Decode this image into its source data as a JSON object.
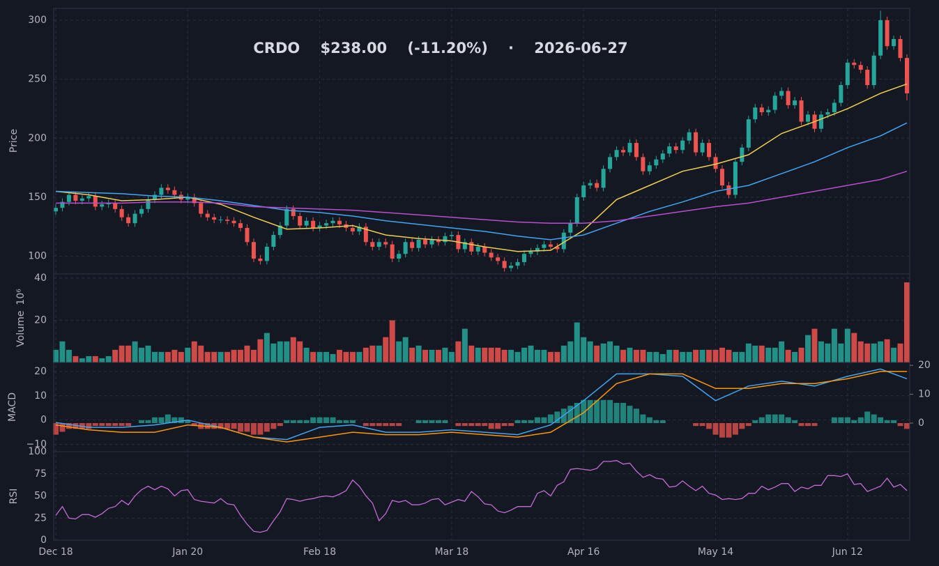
{
  "chart_data": {
    "type": "candlestick",
    "title": "CRDO    $238.00    (-11.20%)    ·    2026-06-27",
    "categories": [
      "Dec 18",
      null,
      null,
      null,
      null,
      null,
      null,
      null,
      null,
      null,
      null,
      null,
      null,
      null,
      null,
      null,
      null,
      null,
      null,
      null,
      "Jan 20",
      null,
      null,
      null,
      null,
      null,
      null,
      null,
      null,
      null,
      null,
      null,
      null,
      null,
      null,
      null,
      null,
      null,
      null,
      null,
      "Feb 18",
      null,
      null,
      null,
      null,
      null,
      null,
      null,
      null,
      null,
      null,
      null,
      null,
      null,
      null,
      null,
      null,
      null,
      null,
      null,
      "Mar 18",
      null,
      null,
      null,
      null,
      null,
      null,
      null,
      null,
      null,
      null,
      null,
      null,
      null,
      null,
      null,
      null,
      null,
      null,
      null,
      "Apr 16",
      null,
      null,
      null,
      null,
      null,
      null,
      null,
      null,
      null,
      null,
      null,
      null,
      null,
      null,
      null,
      null,
      null,
      null,
      null,
      "May 14",
      null,
      null,
      null,
      null,
      null,
      null,
      null,
      null,
      null,
      null,
      null,
      null,
      null,
      null,
      null,
      null,
      null,
      null,
      null,
      "Jun 12",
      null,
      null,
      null,
      null,
      null,
      null,
      null,
      null,
      null
    ],
    "open": [
      138,
      141,
      146,
      152,
      147,
      149,
      151,
      142,
      144,
      145,
      140,
      133,
      128,
      136,
      140,
      148,
      152,
      158,
      156,
      152,
      148,
      150,
      145,
      136,
      133,
      131,
      131,
      130,
      128,
      124,
      112,
      98,
      96,
      108,
      118,
      126,
      140,
      134,
      126,
      130,
      124,
      126,
      128,
      130,
      127,
      124,
      121,
      125,
      112,
      108,
      112,
      110,
      98,
      102,
      112,
      107,
      114,
      110,
      114,
      112,
      117,
      118,
      106,
      112,
      104,
      108,
      103,
      99,
      96,
      90,
      92,
      95,
      102,
      104,
      107,
      110,
      108,
      106,
      120,
      128,
      150,
      160,
      162,
      158,
      174,
      184,
      190,
      188,
      196,
      184,
      172,
      177,
      182,
      187,
      193,
      190,
      198,
      205,
      188,
      196,
      184,
      174,
      160,
      152,
      180,
      192,
      216,
      226,
      222,
      224,
      236,
      240,
      228,
      232,
      214,
      220,
      208,
      220,
      222,
      230,
      245,
      264,
      262,
      258,
      245,
      270,
      300,
      278,
      284,
      268
    ],
    "high": [
      144,
      149,
      155,
      155,
      152,
      154,
      154,
      147,
      148,
      148,
      143,
      136,
      139,
      143,
      151,
      155,
      161,
      161,
      159,
      155,
      153,
      153,
      148,
      139,
      136,
      134,
      134,
      133,
      131,
      127,
      115,
      101,
      111,
      121,
      129,
      143,
      143,
      137,
      133,
      133,
      129,
      131,
      133,
      133,
      130,
      127,
      128,
      128,
      115,
      115,
      115,
      113,
      105,
      115,
      115,
      117,
      117,
      117,
      117,
      120,
      121,
      121,
      115,
      115,
      111,
      111,
      106,
      102,
      99,
      95,
      98,
      105,
      107,
      110,
      113,
      113,
      111,
      123,
      131,
      153,
      163,
      165,
      165,
      177,
      187,
      193,
      193,
      199,
      199,
      187,
      180,
      185,
      190,
      196,
      196,
      201,
      208,
      208,
      199,
      199,
      187,
      177,
      163,
      183,
      195,
      219,
      229,
      229,
      227,
      239,
      243,
      243,
      235,
      235,
      223,
      223,
      223,
      225,
      233,
      248,
      267,
      267,
      265,
      261,
      273,
      308,
      303,
      287,
      287,
      271
    ],
    "low": [
      135,
      138,
      143,
      144,
      144,
      146,
      139,
      139,
      141,
      137,
      130,
      125,
      125,
      133,
      137,
      145,
      149,
      153,
      149,
      145,
      145,
      142,
      133,
      130,
      128,
      128,
      127,
      125,
      121,
      109,
      95,
      93,
      93,
      105,
      115,
      123,
      131,
      123,
      123,
      121,
      121,
      123,
      125,
      124,
      121,
      118,
      118,
      109,
      105,
      105,
      107,
      95,
      95,
      99,
      104,
      104,
      107,
      107,
      109,
      109,
      114,
      103,
      103,
      101,
      101,
      100,
      96,
      93,
      87,
      87,
      89,
      92,
      99,
      101,
      104,
      105,
      103,
      103,
      117,
      125,
      147,
      157,
      155,
      155,
      171,
      181,
      185,
      185,
      181,
      169,
      169,
      174,
      179,
      184,
      187,
      187,
      195,
      185,
      185,
      181,
      171,
      157,
      149,
      149,
      177,
      189,
      213,
      219,
      219,
      221,
      233,
      225,
      225,
      211,
      211,
      205,
      205,
      217,
      219,
      227,
      242,
      259,
      255,
      242,
      242,
      267,
      275,
      275,
      265,
      232
    ],
    "close": [
      141,
      146,
      152,
      147,
      149,
      151,
      142,
      144,
      145,
      140,
      133,
      128,
      136,
      140,
      148,
      152,
      158,
      156,
      152,
      148,
      150,
      145,
      136,
      133,
      131,
      131,
      130,
      128,
      124,
      112,
      98,
      96,
      108,
      118,
      126,
      140,
      134,
      126,
      130,
      124,
      126,
      128,
      130,
      127,
      124,
      121,
      125,
      112,
      108,
      112,
      110,
      98,
      102,
      112,
      107,
      114,
      110,
      114,
      112,
      117,
      118,
      106,
      112,
      104,
      108,
      103,
      99,
      96,
      90,
      92,
      95,
      102,
      104,
      107,
      110,
      108,
      106,
      120,
      128,
      150,
      160,
      162,
      158,
      174,
      184,
      190,
      188,
      196,
      184,
      172,
      177,
      182,
      187,
      193,
      190,
      198,
      205,
      188,
      196,
      184,
      174,
      160,
      152,
      180,
      192,
      216,
      226,
      222,
      224,
      236,
      240,
      228,
      232,
      214,
      220,
      208,
      220,
      222,
      230,
      245,
      264,
      262,
      258,
      245,
      270,
      300,
      278,
      284,
      268,
      238
    ],
    "up_color": "#26a69a",
    "down_color": "#ef5350",
    "ylabel": "Price",
    "ylim": [
      85,
      310
    ],
    "yticks": [
      100,
      150,
      200,
      250,
      300
    ],
    "grid": true,
    "overlays": {
      "x": [
        0,
        5,
        10,
        15,
        20,
        25,
        30,
        35,
        40,
        45,
        50,
        55,
        60,
        65,
        70,
        75,
        80,
        85,
        90,
        95,
        100,
        105,
        110,
        115,
        120,
        125,
        129
      ],
      "series": [
        {
          "color": "#f0cf4c",
          "values": [
            155,
            152,
            147,
            148,
            150,
            144,
            133,
            123,
            124,
            126,
            118,
            115,
            113,
            108,
            104,
            105,
            122,
            148,
            160,
            172,
            178,
            186,
            204,
            214,
            225,
            238,
            246
          ]
        },
        {
          "color": "#42a5f5",
          "values": [
            155,
            154,
            153,
            151,
            150,
            147,
            143,
            139,
            137,
            134,
            130,
            127,
            124,
            121,
            117,
            114,
            118,
            128,
            138,
            146,
            155,
            160,
            170,
            180,
            192,
            202,
            213
          ]
        },
        {
          "color": "#b94fd0",
          "values": [
            145,
            145,
            145,
            146,
            146,
            145,
            142,
            141,
            140,
            139,
            137,
            135,
            133,
            131,
            129,
            128,
            128,
            130,
            134,
            138,
            142,
            145,
            150,
            155,
            160,
            165,
            172
          ]
        }
      ]
    },
    "volume": {
      "label": "Volume",
      "scale": "10⁶",
      "ylim": [
        0,
        42
      ],
      "yticks": [
        20,
        40
      ],
      "values": [
        6,
        10,
        6,
        3,
        2,
        3,
        3,
        2,
        3,
        6,
        8,
        8,
        10,
        7,
        8,
        5,
        5,
        5,
        6,
        5,
        7,
        10,
        8,
        5,
        5,
        5,
        5,
        6,
        6,
        8,
        6,
        11,
        14,
        9,
        10,
        10,
        12,
        10,
        7,
        5,
        5,
        5,
        4,
        6,
        5,
        5,
        5,
        7,
        8,
        8,
        12,
        20,
        10,
        12,
        7,
        8,
        6,
        6,
        6,
        7,
        5,
        10,
        16,
        8,
        7,
        7,
        7,
        7,
        6,
        6,
        5,
        7,
        8,
        6,
        6,
        5,
        5,
        8,
        10,
        19,
        12,
        10,
        8,
        9,
        10,
        8,
        6,
        7,
        6,
        6,
        5,
        5,
        4,
        6,
        6,
        5,
        5,
        6,
        6,
        6,
        6,
        7,
        6,
        5,
        5,
        9,
        8,
        8,
        7,
        7,
        10,
        6,
        5,
        7,
        13,
        16,
        10,
        9,
        16,
        9,
        16,
        14,
        10,
        9,
        9,
        10,
        11,
        7,
        9,
        38
      ]
    },
    "macd": {
      "label": "MACD",
      "ylim": [
        -13,
        23.7
      ],
      "yticks": [
        {
          "value": -10,
          "label": "−10"
        },
        0,
        10,
        20
      ],
      "y2lim": [
        -9.9,
        21
      ],
      "y2ticks": [
        0,
        10,
        20
      ],
      "x": [
        0,
        5,
        10,
        15,
        20,
        25,
        30,
        35,
        40,
        45,
        50,
        55,
        60,
        65,
        70,
        75,
        80,
        85,
        90,
        95,
        100,
        105,
        110,
        115,
        120,
        125,
        129
      ],
      "series": [
        {
          "color": "#42a5f5",
          "values": [
            -1,
            -3,
            -3,
            -2,
            0,
            -3,
            -7,
            -8,
            -3,
            -2,
            -5,
            -5,
            -4,
            -5,
            -6,
            -2,
            8,
            19,
            19,
            18,
            8,
            14,
            16,
            14,
            18,
            21,
            17
          ]
        },
        {
          "color": "#ff9800",
          "values": [
            -2,
            -4,
            -5,
            -5,
            -2,
            -3,
            -7,
            -9,
            -7,
            -5,
            -6,
            -6,
            -5,
            -6,
            -7,
            -5,
            3,
            15,
            19,
            19,
            13,
            13,
            15,
            15,
            17,
            20,
            20
          ]
        }
      ],
      "histogram": {
        "axis": "y2",
        "up_color": "#26a69a",
        "down_color": "#ef5350",
        "values": [
          -4,
          -3,
          -2,
          -2,
          -2,
          -2,
          -1,
          -1,
          -1,
          -1,
          -1,
          -1,
          0,
          1,
          1,
          2,
          2,
          3,
          2,
          2,
          1,
          -1,
          -2,
          -2,
          -2,
          -2,
          -2,
          -2,
          -3,
          -3,
          -4,
          -4,
          -3,
          -2,
          -1,
          1,
          1,
          1,
          1,
          2,
          2,
          2,
          2,
          1,
          1,
          1,
          0,
          -1,
          -1,
          -1,
          -1,
          -1,
          -1,
          0,
          0,
          1,
          1,
          1,
          1,
          1,
          0,
          -1,
          -1,
          -1,
          -1,
          -1,
          -2,
          -2,
          -1,
          -1,
          1,
          1,
          1,
          2,
          2,
          3,
          4,
          5,
          6,
          7,
          8,
          8,
          8,
          8,
          8,
          7,
          7,
          6,
          5,
          3,
          2,
          1,
          1,
          0,
          0,
          0,
          0,
          -1,
          -1,
          -2,
          -4,
          -5,
          -5,
          -4,
          -2,
          -1,
          1,
          2,
          3,
          3,
          3,
          2,
          1,
          -1,
          -1,
          -1,
          0,
          0,
          2,
          2,
          2,
          1,
          2,
          4,
          3,
          2,
          1,
          1,
          -1,
          -2
        ]
      }
    },
    "rsi": {
      "label": "RSI",
      "color": "#c56bd8",
      "ylim": [
        0,
        100
      ],
      "yticks": [
        0,
        25,
        50,
        75,
        100
      ],
      "values": [
        28,
        38,
        25,
        24,
        29,
        29,
        26,
        30,
        36,
        38,
        45,
        40,
        50,
        57,
        61,
        57,
        61,
        58,
        50,
        56,
        57,
        46,
        44,
        43,
        42,
        47,
        41,
        40,
        28,
        18,
        10,
        9,
        11,
        22,
        32,
        47,
        46,
        44,
        46,
        47,
        49,
        50,
        49,
        52,
        56,
        68,
        61,
        50,
        42,
        22,
        30,
        45,
        43,
        45,
        40,
        40,
        42,
        46,
        47,
        40,
        43,
        46,
        44,
        55,
        49,
        41,
        40,
        33,
        31,
        34,
        38,
        38,
        38,
        53,
        56,
        50,
        62,
        66,
        80,
        81,
        80,
        79,
        81,
        89,
        89,
        90,
        86,
        87,
        78,
        71,
        74,
        70,
        69,
        60,
        61,
        67,
        61,
        56,
        61,
        53,
        51,
        46,
        47,
        46,
        47,
        53,
        53,
        61,
        57,
        60,
        64,
        64,
        55,
        60,
        58,
        62,
        62,
        73,
        73,
        72,
        75,
        63,
        64,
        55,
        58,
        61,
        70,
        60,
        63,
        56
      ]
    }
  }
}
